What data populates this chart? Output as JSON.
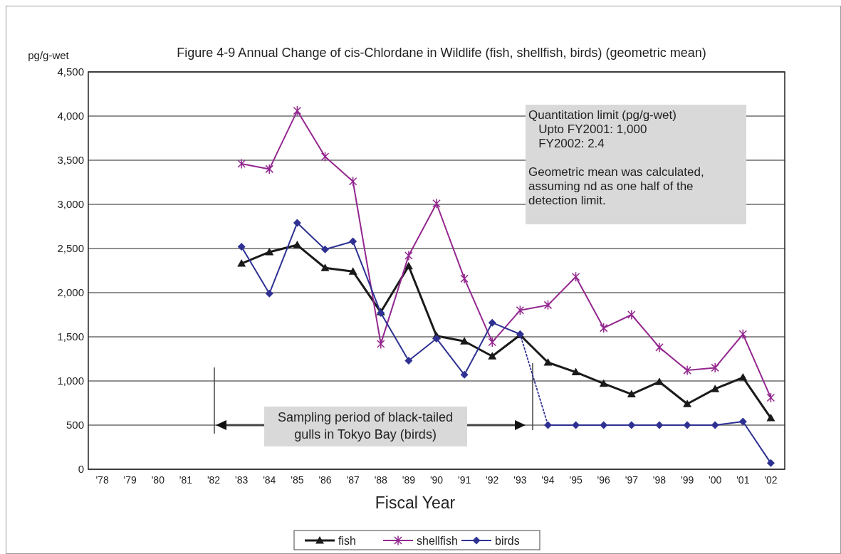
{
  "chart_data": {
    "type": "line",
    "title": "Figure 4-9  Annual Change of cis-Chlordane in Wildlife (fish, shellfish, birds) (geometric mean)",
    "xlabel": "Fiscal Year",
    "ylabel": "pg/g-wet",
    "categories": [
      "'78",
      "'79",
      "'80",
      "'81",
      "'82",
      "'83",
      "'84",
      "'85",
      "'86",
      "'87",
      "'88",
      "'89",
      "'90",
      "'91",
      "'92",
      "'93",
      "'94",
      "'95",
      "'96",
      "'97",
      "'98",
      "'99",
      "'00",
      "'01",
      "'02"
    ],
    "series": [
      {
        "name": "fish",
        "color": "#1a1a1a",
        "marker": "triangle",
        "values": [
          null,
          null,
          null,
          null,
          null,
          2330,
          2460,
          2540,
          2280,
          2240,
          1780,
          2300,
          1510,
          1450,
          1280,
          1520,
          1210,
          1100,
          970,
          850,
          990,
          740,
          910,
          1040,
          580
        ]
      },
      {
        "name": "shellfish",
        "color": "#93278f",
        "marker": "cross",
        "values": [
          null,
          null,
          null,
          null,
          null,
          3460,
          3400,
          4060,
          3540,
          3260,
          1420,
          2420,
          3010,
          2160,
          1440,
          1800,
          1860,
          2180,
          1600,
          1750,
          1380,
          1120,
          1150,
          1530,
          810
        ]
      },
      {
        "name": "birds",
        "color": "#2e3192",
        "marker": "diamond",
        "values": [
          null,
          null,
          null,
          null,
          null,
          2520,
          1990,
          2790,
          2490,
          2580,
          1770,
          1230,
          1480,
          1070,
          1660,
          1530,
          null,
          null,
          null,
          null,
          null,
          null,
          null,
          null,
          null
        ]
      },
      {
        "color": "#2e3192",
        "marker": "none",
        "line_style": "dotted",
        "values": [
          null,
          null,
          null,
          null,
          null,
          null,
          null,
          null,
          null,
          null,
          null,
          null,
          null,
          null,
          null,
          1530,
          500,
          null,
          null,
          null,
          null,
          null,
          null,
          null,
          null
        ]
      },
      {
        "color": "#2e3192",
        "marker": "diamond",
        "values": [
          null,
          null,
          null,
          null,
          null,
          null,
          null,
          null,
          null,
          null,
          null,
          null,
          null,
          null,
          null,
          null,
          500,
          500,
          500,
          500,
          500,
          500,
          500,
          540,
          70
        ]
      }
    ],
    "ylim": [
      0,
      4500
    ],
    "yticks": [
      0,
      {
        "value": 500,
        "label": "500"
      },
      {
        "value": 1000,
        "label": "1,000"
      },
      {
        "value": 1500,
        "label": "1,500"
      },
      {
        "value": 2000,
        "label": "2,000"
      },
      {
        "value": 2500,
        "label": "2,500"
      },
      {
        "value": 3000,
        "label": "3,000"
      },
      {
        "value": 3500,
        "label": "3,500"
      },
      {
        "value": 4000,
        "label": "4,000"
      },
      {
        "value": 4500,
        "label": "4,500"
      }
    ],
    "grid": "y",
    "legend": "bottom",
    "line_style": "solid",
    "annotations": [
      "Quantitation limit (pg/g-wet)\n   Upto FY2001: 1,000\n   FY2002: 2.4\n\nGeometric mean was calculated,\nassuming nd as one half of the\ndetection limit.",
      "Sampling period of black-tailed\ngulls in Tokyo Bay (birds)"
    ]
  }
}
